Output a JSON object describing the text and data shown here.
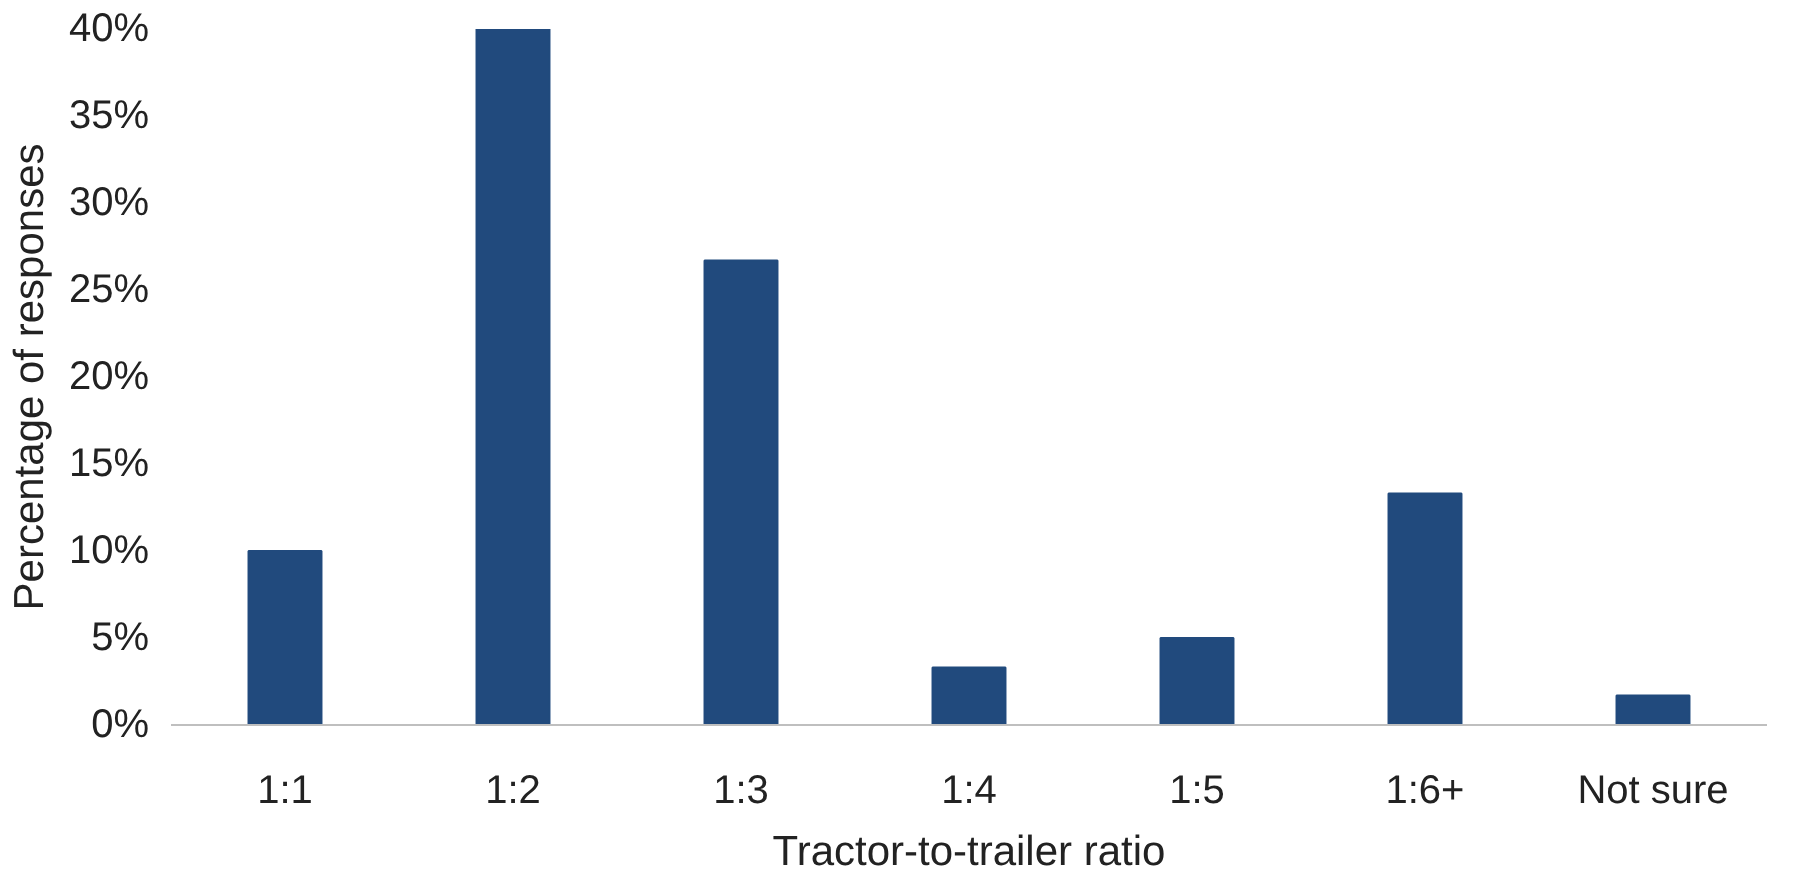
{
  "chart_data": {
    "type": "bar",
    "xlabel": "Tractor-to-trailer ratio",
    "ylabel": "Percentage of responses",
    "categories": [
      "1:1",
      "1:2",
      "1:3",
      "1:4",
      "1:5",
      "1:6+",
      "Not sure"
    ],
    "values": [
      10,
      40,
      26.7,
      3.3,
      5,
      13.3,
      1.7
    ],
    "color": "#214a7d",
    "ylim": [
      0,
      40
    ],
    "yticks": [
      {
        "value": 0,
        "label": "0%"
      },
      {
        "value": 5,
        "label": "5%"
      },
      {
        "value": 10,
        "label": "10%"
      },
      {
        "value": 15,
        "label": "15%"
      },
      {
        "value": 20,
        "label": "20%"
      },
      {
        "value": 25,
        "label": "25%"
      },
      {
        "value": 30,
        "label": "30%"
      },
      {
        "value": 35,
        "label": "35%"
      },
      {
        "value": 40,
        "label": "40%"
      }
    ],
    "grid": false
  }
}
